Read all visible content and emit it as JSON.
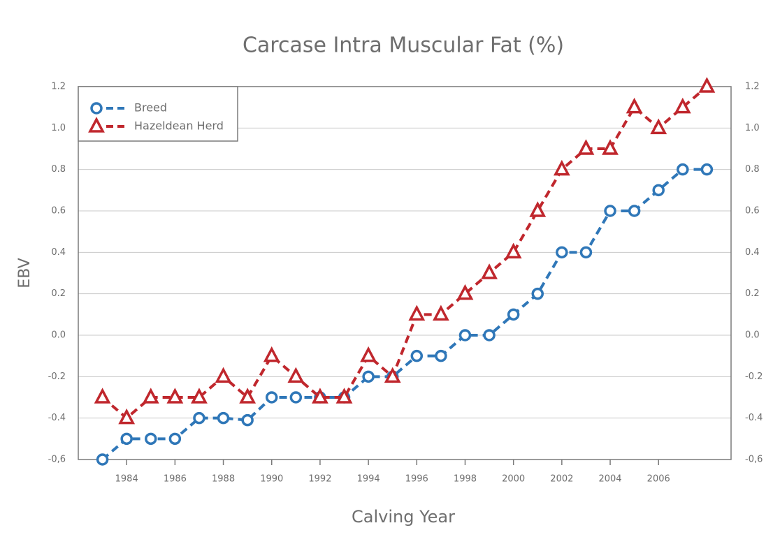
{
  "chart_data": {
    "type": "line",
    "title": "Carcase Intra Muscular Fat (%)",
    "x_label": "Calving Year",
    "y_label": "EBV",
    "x": [
      1983,
      1984,
      1985,
      1986,
      1987,
      1988,
      1989,
      1990,
      1991,
      1992,
      1993,
      1994,
      1995,
      1996,
      1997,
      1998,
      1999,
      2000,
      2001,
      2002,
      2003,
      2004,
      2005,
      2006,
      2007,
      2008
    ],
    "series": [
      {
        "name": "Breed",
        "color": "#2f77b8",
        "marker": "circle",
        "values": [
          -0.6,
          -0.5,
          -0.5,
          -0.5,
          -0.4,
          -0.4,
          -0.41,
          -0.3,
          -0.3,
          -0.3,
          -0.3,
          -0.2,
          -0.2,
          -0.1,
          -0.1,
          0.0,
          0.0,
          0.1,
          0.2,
          0.4,
          0.4,
          0.6,
          0.6,
          0.7,
          0.8,
          0.8
        ]
      },
      {
        "name": "Hazeldean Herd",
        "color": "#c0272d",
        "marker": "triangle",
        "values": [
          -0.3,
          -0.4,
          -0.3,
          -0.3,
          -0.3,
          -0.2,
          -0.3,
          -0.1,
          -0.2,
          -0.3,
          -0.3,
          -0.1,
          -0.2,
          0.1,
          0.1,
          0.2,
          0.3,
          0.4,
          0.6,
          0.8,
          0.9,
          0.9,
          1.1,
          1.0,
          1.1,
          1.2
        ]
      }
    ],
    "xlim": [
      1982,
      2009
    ],
    "xticks": [
      1984,
      1986,
      1988,
      1990,
      1992,
      1994,
      1996,
      1998,
      2000,
      2002,
      2004,
      2006
    ],
    "ylim": [
      -0.6,
      1.2
    ],
    "yticks": [
      {
        "value": -0.6,
        "label": "-0,6"
      },
      -0.4,
      -0.2,
      {
        "value": 0,
        "label": "0.0"
      },
      0.2,
      0.4,
      0.6,
      0.8,
      {
        "value": 1,
        "label": "1.0"
      },
      1.2
    ],
    "grid": true,
    "legend": "top-left"
  }
}
